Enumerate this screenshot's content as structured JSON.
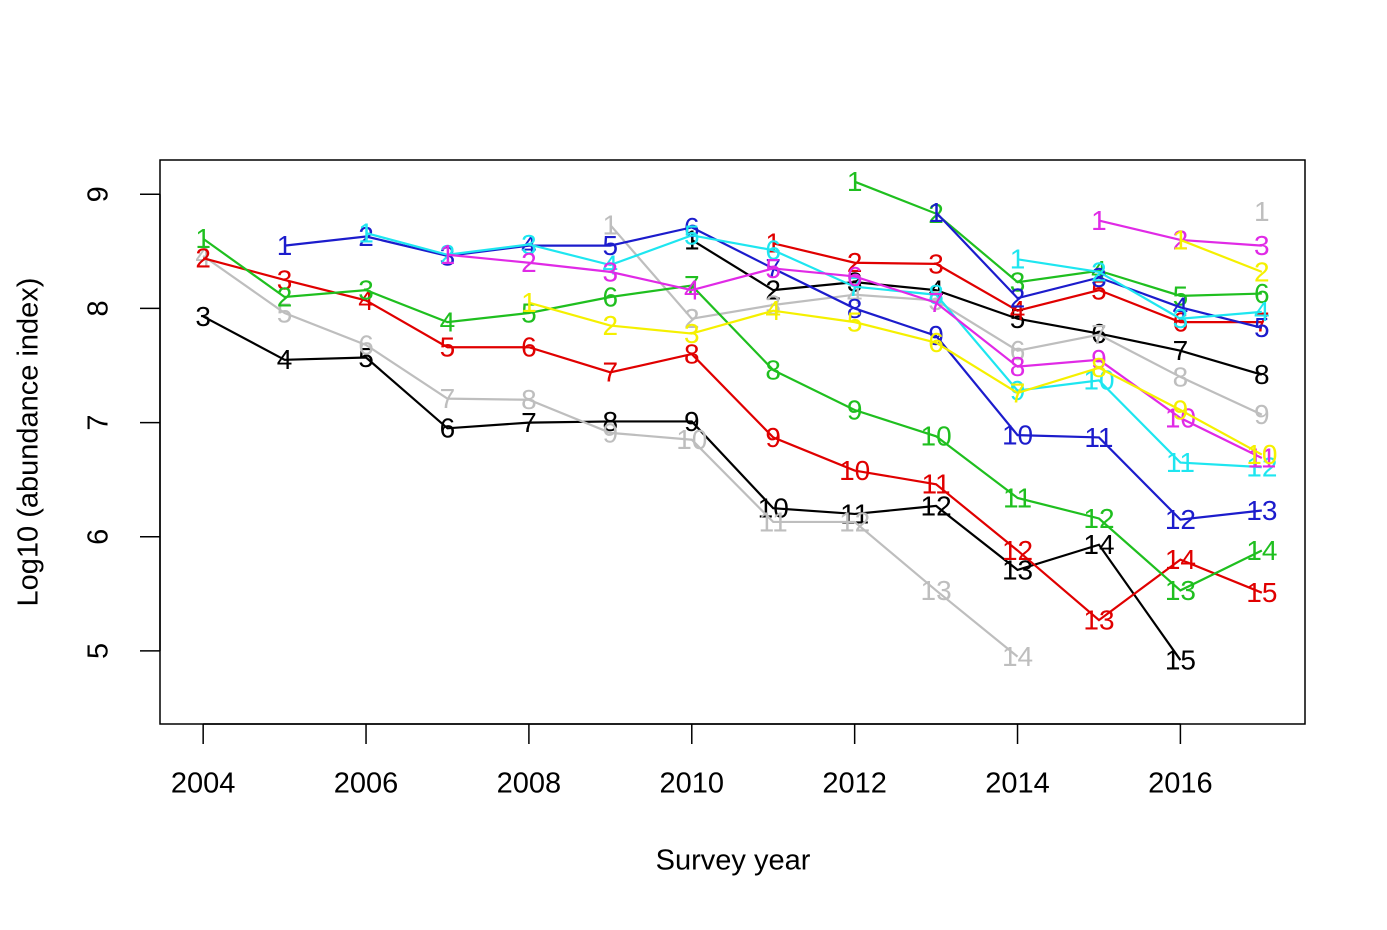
{
  "chart_data": {
    "type": "line",
    "xlabel": "Survey year",
    "ylabel": "Log10 (abundance index)",
    "xlim": [
      2003.47,
      2017.53
    ],
    "ylim": [
      4.36,
      9.3
    ],
    "xticks": [
      2004,
      2006,
      2008,
      2010,
      2012,
      2014,
      2016
    ],
    "yticks": [
      5,
      6,
      7,
      8,
      9
    ],
    "series": [
      {
        "color": "#000000",
        "x": [
          2004,
          2005,
          2006,
          2007,
          2008,
          2009,
          2010,
          2011,
          2012,
          2013,
          2014,
          2015,
          2016
        ],
        "values": [
          7.93,
          7.55,
          7.57,
          6.95,
          7.0,
          7.01,
          7.01,
          6.25,
          6.2,
          6.27,
          5.71,
          5.93,
          4.92
        ],
        "labels": [
          3,
          4,
          5,
          6,
          7,
          8,
          9,
          10,
          11,
          12,
          13,
          14,
          15
        ]
      },
      {
        "color": "#000000",
        "x": [
          2010,
          2011,
          2012,
          2013,
          2014,
          2015,
          2016,
          2017
        ],
        "values": [
          8.6,
          8.16,
          8.23,
          8.16,
          7.91,
          7.78,
          7.63,
          7.42
        ],
        "labels": [
          1,
          2,
          3,
          4,
          5,
          6,
          7,
          8
        ]
      },
      {
        "color": "#bebebe",
        "x": [
          2004,
          2005,
          2006,
          2007,
          2008,
          2009,
          2010,
          2011,
          2012,
          2013,
          2014
        ],
        "values": [
          8.46,
          7.96,
          7.68,
          7.21,
          7.2,
          6.91,
          6.85,
          6.13,
          6.13,
          5.53,
          4.95
        ],
        "labels": [
          4,
          5,
          6,
          7,
          8,
          9,
          10,
          11,
          12,
          13,
          14
        ]
      },
      {
        "color": "#bebebe",
        "x": [
          2009,
          2010,
          2011,
          2012,
          2013,
          2014,
          2015,
          2016,
          2017
        ],
        "values": [
          8.73,
          7.91,
          8.03,
          8.12,
          8.07,
          7.63,
          7.77,
          7.4,
          7.07
        ],
        "labels": [
          1,
          2,
          3,
          4,
          5,
          6,
          7,
          8,
          9
        ]
      },
      {
        "color": "#bebebe",
        "x": [
          2017
        ],
        "values": [
          8.85
        ],
        "labels": [
          1
        ]
      },
      {
        "color": "#e00000",
        "x": [
          2004,
          2005,
          2006,
          2007,
          2008,
          2009,
          2010,
          2011,
          2012,
          2013,
          2014,
          2015,
          2016,
          2017
        ],
        "values": [
          8.44,
          8.25,
          8.07,
          7.66,
          7.66,
          7.44,
          7.6,
          6.87,
          6.58,
          6.46,
          5.88,
          5.27,
          5.8,
          5.51
        ],
        "labels": [
          2,
          3,
          4,
          5,
          6,
          7,
          8,
          9,
          10,
          11,
          12,
          13,
          14,
          15
        ]
      },
      {
        "color": "#e00000",
        "x": [
          2011,
          2012,
          2013,
          2014,
          2015,
          2016,
          2017
        ],
        "values": [
          8.57,
          8.4,
          8.39,
          7.98,
          8.16,
          7.88,
          7.88
        ],
        "labels": [
          1,
          2,
          3,
          4,
          5,
          6,
          7
        ]
      },
      {
        "color": "#1fbf1f",
        "x": [
          2004,
          2005,
          2006,
          2007,
          2008,
          2009,
          2010,
          2011,
          2012,
          2013,
          2014,
          2015,
          2016,
          2017
        ],
        "values": [
          8.61,
          8.1,
          8.16,
          7.88,
          7.96,
          8.1,
          8.2,
          7.46,
          7.11,
          6.88,
          6.34,
          6.16,
          5.53,
          5.88
        ],
        "labels": [
          1,
          2,
          3,
          4,
          5,
          6,
          7,
          8,
          9,
          10,
          11,
          12,
          13,
          14
        ]
      },
      {
        "color": "#1fbf1f",
        "x": [
          2012,
          2013,
          2014,
          2015,
          2016,
          2017
        ],
        "values": [
          9.11,
          8.83,
          8.23,
          8.33,
          8.11,
          8.13
        ],
        "labels": [
          1,
          2,
          3,
          4,
          5,
          6
        ]
      },
      {
        "color": "#1c1ccc",
        "x": [
          2005,
          2006,
          2007,
          2008,
          2009,
          2010,
          2011,
          2012,
          2013,
          2014,
          2015,
          2016,
          2017
        ],
        "values": [
          8.55,
          8.63,
          8.46,
          8.55,
          8.55,
          8.71,
          8.35,
          8.0,
          7.76,
          6.89,
          6.87,
          6.15,
          6.23
        ],
        "labels": [
          1,
          2,
          3,
          4,
          5,
          6,
          7,
          8,
          9,
          10,
          11,
          12,
          13
        ]
      },
      {
        "color": "#1c1ccc",
        "x": [
          2013,
          2014,
          2015,
          2016,
          2017
        ],
        "values": [
          8.84,
          8.09,
          8.27,
          8.01,
          7.83
        ],
        "labels": [
          1,
          2,
          3,
          4,
          5
        ]
      },
      {
        "color": "#1ee6f0",
        "x": [
          2006,
          2007,
          2008,
          2009,
          2010,
          2011,
          2012,
          2013,
          2014,
          2015,
          2016,
          2017
        ],
        "values": [
          8.66,
          8.47,
          8.56,
          8.38,
          8.64,
          8.51,
          8.19,
          8.12,
          7.28,
          7.37,
          6.65,
          6.61
        ],
        "labels": [
          1,
          2,
          3,
          4,
          5,
          6,
          7,
          8,
          9,
          10,
          11,
          12
        ]
      },
      {
        "color": "#1ee6f0",
        "x": [
          2014,
          2015,
          2016,
          2017
        ],
        "values": [
          8.43,
          8.32,
          7.91,
          7.97
        ],
        "labels": [
          1,
          2,
          3,
          4
        ]
      },
      {
        "color": "#e02ae6",
        "x": [
          2007,
          2008,
          2009,
          2010,
          2011,
          2012,
          2013,
          2014,
          2015,
          2016,
          2017
        ],
        "values": [
          8.47,
          8.4,
          8.32,
          8.16,
          8.35,
          8.28,
          8.05,
          7.49,
          7.55,
          7.04,
          6.69
        ],
        "labels": [
          1,
          2,
          3,
          4,
          5,
          6,
          7,
          8,
          9,
          10,
          11
        ]
      },
      {
        "color": "#e02ae6",
        "x": [
          2015,
          2016,
          2017
        ],
        "values": [
          8.77,
          8.6,
          8.55
        ],
        "labels": [
          1,
          2,
          3
        ]
      },
      {
        "color": "#f5f000",
        "x": [
          2008,
          2009,
          2010,
          2011,
          2012,
          2013,
          2014,
          2015,
          2016,
          2017
        ],
        "values": [
          8.05,
          7.85,
          7.78,
          7.98,
          7.88,
          7.7,
          7.26,
          7.48,
          7.11,
          6.72
        ],
        "labels": [
          1,
          2,
          3,
          4,
          5,
          6,
          7,
          8,
          9,
          10
        ]
      },
      {
        "color": "#f5f000",
        "x": [
          2016,
          2017
        ],
        "values": [
          8.6,
          8.32
        ],
        "labels": [
          1,
          2
        ]
      }
    ]
  }
}
